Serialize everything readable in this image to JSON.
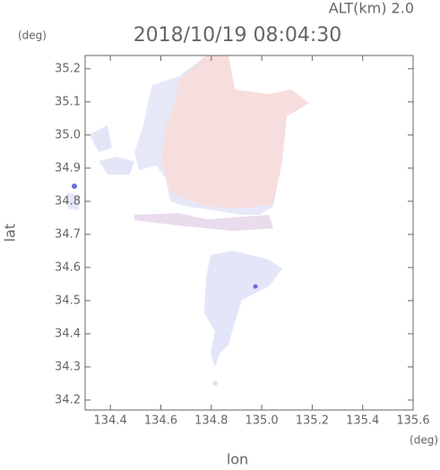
{
  "chart_data": {
    "type": "field",
    "title": "2018/10/19 08:04:30",
    "subtitle": "ALT(km) 2.0",
    "y_unit": "(deg)",
    "x_unit": "(deg)",
    "y_label": "lat",
    "x_label": "lon",
    "xlim": [
      134.3,
      135.6
    ],
    "ylim": [
      34.17,
      35.24
    ],
    "xticks": [
      134.4,
      134.6,
      134.8,
      {
        "value": 135.0,
        "label": "135.0"
      },
      135.2,
      135.4,
      135.6
    ],
    "yticks": [
      34.2,
      34.3,
      34.4,
      34.5,
      34.6,
      34.7,
      34.8,
      34.9,
      {
        "value": 35.0,
        "label": "35.0"
      },
      35.1,
      35.2
    ]
  }
}
